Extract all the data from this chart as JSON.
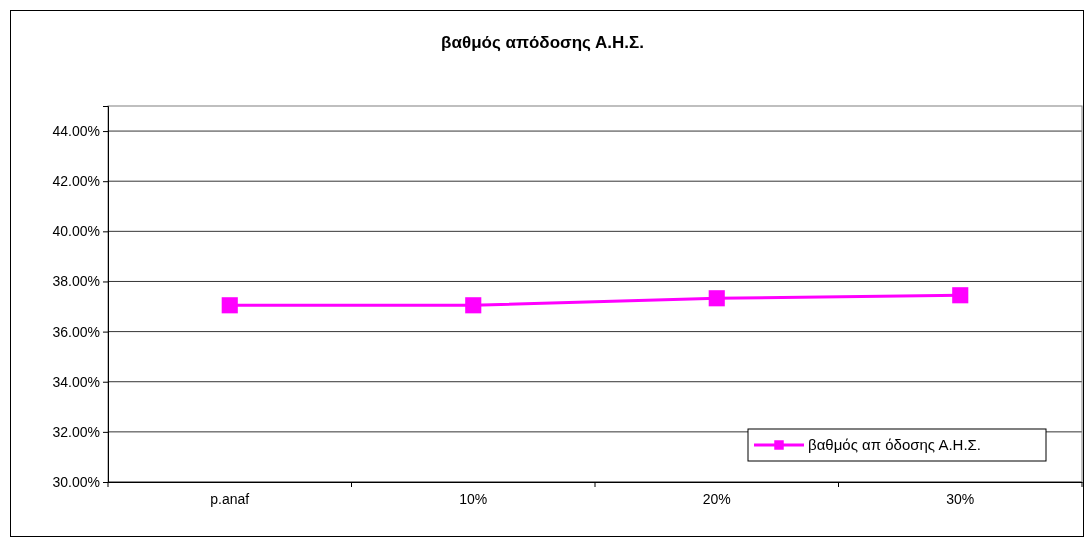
{
  "chart_data": {
    "type": "line",
    "title": "βαθμός απόδοσης Α.Η.Σ.",
    "categories": [
      "p.anaf",
      "10%",
      "20%",
      "30%"
    ],
    "series": [
      {
        "name": "βαθμός απ όδοσης Α.Η.Σ.",
        "color": "#ff00ff",
        "values": [
          37.05,
          37.05,
          37.33,
          37.45
        ]
      }
    ],
    "ylim": [
      30,
      45
    ],
    "yticks": [
      {
        "value": 30,
        "label": "30.00%"
      },
      {
        "value": 32,
        "label": "32.00%"
      },
      {
        "value": 34,
        "label": "34.00%"
      },
      {
        "value": 36,
        "label": "36.00%"
      },
      {
        "value": 38,
        "label": "38.00%"
      },
      {
        "value": 40,
        "label": "40.00%"
      },
      {
        "value": 42,
        "label": "42.00%"
      },
      {
        "value": 44,
        "label": "44.00%"
      }
    ],
    "grid": "y",
    "legend": "bottom right",
    "marker": "square",
    "line_style": "solid"
  }
}
